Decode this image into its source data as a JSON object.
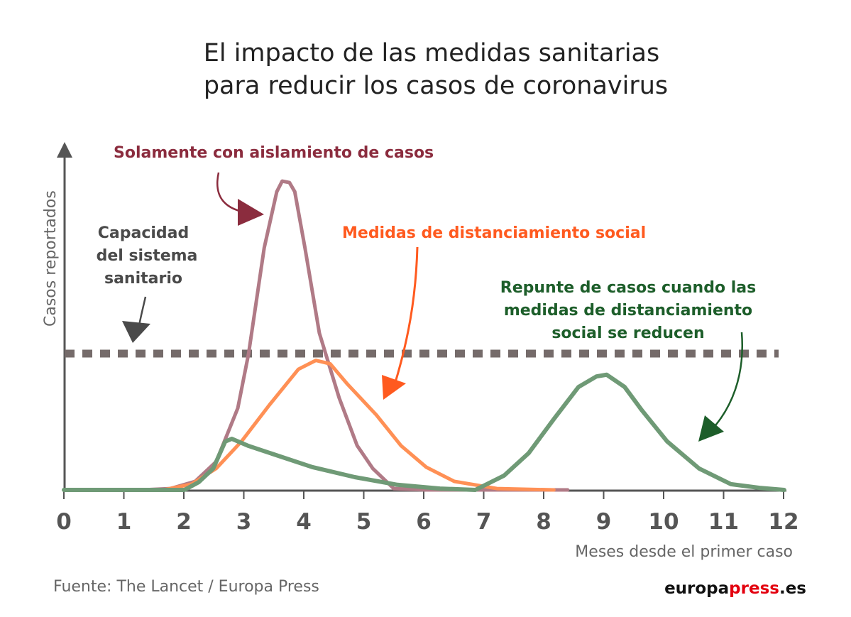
{
  "chart_data": {
    "type": "line",
    "title": "El impacto de las medidas sanitarias para reducir los casos de coronavirus",
    "title_lines": [
      "El impacto de las medidas sanitarias",
      "para reducir los casos de coronavirus"
    ],
    "xlabel": "Meses desde el primer caso",
    "ylabel": "Casos reportados",
    "xlim": [
      0,
      12
    ],
    "ylim": [
      0,
      100
    ],
    "xticks": [
      0,
      1,
      2,
      3,
      4,
      5,
      6,
      7,
      8,
      9,
      10,
      11,
      12
    ],
    "grid": false,
    "capacity": {
      "y": 40,
      "color": "#756b6a",
      "label_lines": [
        "Capacidad",
        "del sistema",
        "sanitario"
      ],
      "label_color": "#4a4a4a"
    },
    "series": [
      {
        "color": "#b07a86",
        "label_color": "#8b2c3e",
        "label_lines": [
          "Solamente con aislamiento de casos"
        ],
        "x": [
          0,
          1.3,
          1.78,
          2.19,
          2.54,
          2.9,
          3.08,
          3.34,
          3.55,
          3.64,
          3.76,
          3.85,
          4.02,
          4.26,
          4.59,
          4.89,
          5.15,
          5.5,
          6.04,
          8.4
        ],
        "y": [
          0,
          0,
          0.4,
          2.5,
          8.3,
          24,
          40,
          71,
          87.5,
          90.6,
          90.2,
          87.5,
          71,
          46,
          27,
          13,
          6.3,
          0.4,
          0,
          0
        ]
      },
      {
        "color": "#ff9055",
        "label_color": "#ff5a1f",
        "label_lines": [
          "Medidas de distanciamiento social"
        ],
        "x": [
          0,
          1.66,
          2.13,
          2.54,
          2.96,
          3.43,
          3.91,
          4.2,
          4.44,
          4.73,
          5.21,
          5.62,
          6.04,
          6.51,
          7.22,
          8.17
        ],
        "y": [
          0,
          0,
          1.7,
          6.3,
          14.2,
          25,
          35.4,
          38,
          37,
          31,
          22,
          13,
          6.7,
          2.5,
          0.4,
          0
        ]
      },
      {
        "color": "#6f9a76",
        "label_color": "#1d5e2a",
        "label_lines": [
          "Repunte de casos cuando las",
          "medidas de distanciamiento",
          "social se reducen"
        ],
        "x": [
          0,
          2.01,
          2.25,
          2.49,
          2.69,
          2.8,
          3.08,
          4.14,
          4.85,
          5.56,
          6.27,
          6.86,
          7.34,
          7.75,
          8.17,
          8.58,
          8.88,
          9.05,
          9.35,
          9.64,
          10.06,
          10.59,
          11.12,
          11.6,
          12.01
        ],
        "y": [
          0,
          0,
          2.3,
          6.3,
          14.2,
          15,
          12.9,
          6.7,
          3.75,
          1.5,
          0.4,
          0,
          4.2,
          10.8,
          20.8,
          30.2,
          33.3,
          33.8,
          30.2,
          23.3,
          14.2,
          6.3,
          1.7,
          0.6,
          0
        ]
      }
    ]
  },
  "footer": {
    "source": "Fuente: The Lancet / Europa Press",
    "logo": {
      "part1": "europa",
      "part2": "press",
      "part3": ".es",
      "accent": "#e3000f"
    }
  }
}
